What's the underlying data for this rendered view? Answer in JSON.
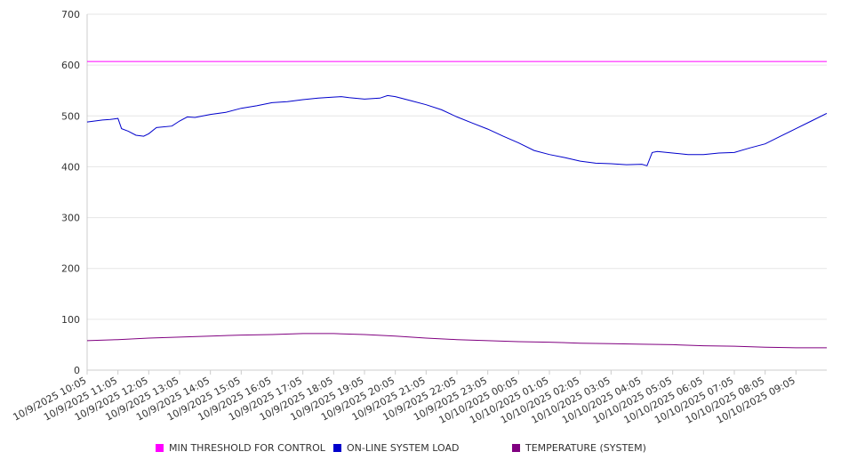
{
  "chart_data": {
    "type": "line",
    "title": "",
    "xlabel": "",
    "ylabel": "",
    "ylim": [
      0,
      700
    ],
    "yticks": [
      0,
      100,
      200,
      300,
      400,
      500,
      600,
      700
    ],
    "x_start": "10/9/2025 10:05",
    "x_end": "10/10/2025 10:05",
    "x_tick_labels": [
      "10/9/2025 10:05",
      "10/9/2025 11:05",
      "10/9/2025 12:05",
      "10/9/2025 13:05",
      "10/9/2025 14:05",
      "10/9/2025 15:05",
      "10/9/2025 16:05",
      "10/9/2025 17:05",
      "10/9/2025 18:05",
      "10/9/2025 19:05",
      "10/9/2025 20:05",
      "10/9/2025 21:05",
      "10/9/2025 22:05",
      "10/9/2025 23:05",
      "10/10/2025 00:05",
      "10/10/2025 01:05",
      "10/10/2025 02:05",
      "10/10/2025 03:05",
      "10/10/2025 04:05",
      "10/10/2025 05:05",
      "10/10/2025 06:05",
      "10/10/2025 07:05",
      "10/10/2025 08:05",
      "10/10/2025 09:05"
    ],
    "grid": true,
    "legend_position": "bottom",
    "series": [
      {
        "name": "MIN THRESHOLD FOR CONTROL",
        "color": "#ff00ff",
        "points": [
          [
            "10/9/2025 10:05",
            607
          ],
          [
            "10/10/2025 10:05",
            607
          ]
        ]
      },
      {
        "name": "ON-LINE SYSTEM LOAD",
        "color": "#0000cc",
        "points": [
          [
            "10/9/2025 10:05",
            488
          ],
          [
            "10/9/2025 10:20",
            490
          ],
          [
            "10/9/2025 10:35",
            492
          ],
          [
            "10/9/2025 10:50",
            493
          ],
          [
            "10/9/2025 11:05",
            495
          ],
          [
            "10/9/2025 11:12",
            475
          ],
          [
            "10/9/2025 11:25",
            470
          ],
          [
            "10/9/2025 11:40",
            462
          ],
          [
            "10/9/2025 11:55",
            460
          ],
          [
            "10/9/2025 12:05",
            465
          ],
          [
            "10/9/2025 12:20",
            477
          ],
          [
            "10/9/2025 12:50",
            480
          ],
          [
            "10/9/2025 13:05",
            490
          ],
          [
            "10/9/2025 13:20",
            498
          ],
          [
            "10/9/2025 13:35",
            497
          ],
          [
            "10/9/2025 14:05",
            503
          ],
          [
            "10/9/2025 14:35",
            507
          ],
          [
            "10/9/2025 15:05",
            515
          ],
          [
            "10/9/2025 15:35",
            520
          ],
          [
            "10/9/2025 16:05",
            526
          ],
          [
            "10/9/2025 16:35",
            528
          ],
          [
            "10/9/2025 17:05",
            532
          ],
          [
            "10/9/2025 17:35",
            535
          ],
          [
            "10/9/2025 18:05",
            537
          ],
          [
            "10/9/2025 18:20",
            538
          ],
          [
            "10/9/2025 18:35",
            536
          ],
          [
            "10/9/2025 19:05",
            533
          ],
          [
            "10/9/2025 19:35",
            535
          ],
          [
            "10/9/2025 19:50",
            540
          ],
          [
            "10/9/2025 20:05",
            538
          ],
          [
            "10/9/2025 20:35",
            530
          ],
          [
            "10/9/2025 21:05",
            522
          ],
          [
            "10/9/2025 21:35",
            512
          ],
          [
            "10/9/2025 22:05",
            498
          ],
          [
            "10/9/2025 22:35",
            486
          ],
          [
            "10/9/2025 23:05",
            474
          ],
          [
            "10/9/2025 23:35",
            460
          ],
          [
            "10/10/2025 00:05",
            447
          ],
          [
            "10/10/2025 00:35",
            432
          ],
          [
            "10/10/2025 01:05",
            424
          ],
          [
            "10/10/2025 01:35",
            418
          ],
          [
            "10/10/2025 02:05",
            411
          ],
          [
            "10/10/2025 02:35",
            407
          ],
          [
            "10/10/2025 03:05",
            406
          ],
          [
            "10/10/2025 03:35",
            404
          ],
          [
            "10/10/2025 04:05",
            405
          ],
          [
            "10/10/2025 04:15",
            402
          ],
          [
            "10/10/2025 04:25",
            428
          ],
          [
            "10/10/2025 04:35",
            430
          ],
          [
            "10/10/2025 05:05",
            427
          ],
          [
            "10/10/2025 05:35",
            424
          ],
          [
            "10/10/2025 06:05",
            424
          ],
          [
            "10/10/2025 06:35",
            427
          ],
          [
            "10/10/2025 07:05",
            428
          ],
          [
            "10/10/2025 07:35",
            437
          ],
          [
            "10/10/2025 08:05",
            445
          ],
          [
            "10/10/2025 08:35",
            460
          ],
          [
            "10/10/2025 09:05",
            475
          ],
          [
            "10/10/2025 09:35",
            490
          ],
          [
            "10/10/2025 10:05",
            505
          ]
        ]
      },
      {
        "name": "TEMPERATURE (SYSTEM)",
        "color": "#800080",
        "points": [
          [
            "10/9/2025 10:05",
            58
          ],
          [
            "10/9/2025 11:05",
            60
          ],
          [
            "10/9/2025 12:05",
            63
          ],
          [
            "10/9/2025 13:05",
            65
          ],
          [
            "10/9/2025 14:05",
            67
          ],
          [
            "10/9/2025 15:05",
            69
          ],
          [
            "10/9/2025 16:05",
            70
          ],
          [
            "10/9/2025 17:05",
            72
          ],
          [
            "10/9/2025 18:05",
            72
          ],
          [
            "10/9/2025 19:05",
            70
          ],
          [
            "10/9/2025 20:05",
            67
          ],
          [
            "10/9/2025 21:05",
            63
          ],
          [
            "10/9/2025 22:05",
            60
          ],
          [
            "10/9/2025 23:05",
            58
          ],
          [
            "10/10/2025 00:05",
            56
          ],
          [
            "10/10/2025 01:05",
            55
          ],
          [
            "10/10/2025 02:05",
            53
          ],
          [
            "10/10/2025 03:05",
            52
          ],
          [
            "10/10/2025 04:05",
            51
          ],
          [
            "10/10/2025 05:05",
            50
          ],
          [
            "10/10/2025 06:05",
            48
          ],
          [
            "10/10/2025 07:05",
            47
          ],
          [
            "10/10/2025 08:05",
            45
          ],
          [
            "10/10/2025 09:05",
            44
          ],
          [
            "10/10/2025 10:05",
            44
          ]
        ]
      }
    ]
  }
}
